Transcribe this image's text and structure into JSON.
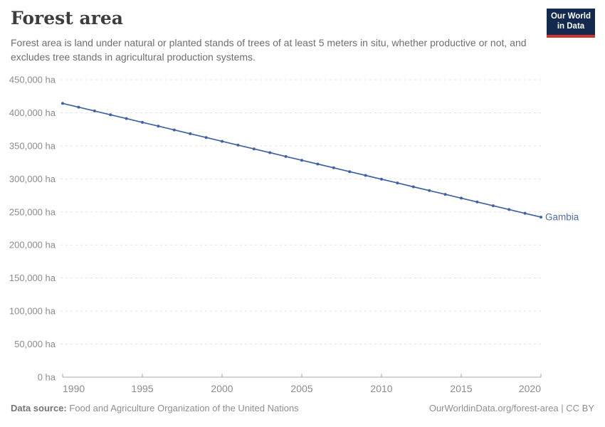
{
  "header": {
    "title": "Forest area",
    "subtitle": "Forest area is land under natural or planted stands of trees of at least 5 meters in situ, whether productive or not, and excludes tree stands in agricultural production systems.",
    "logo": {
      "line1": "Our World",
      "line2": "in Data"
    }
  },
  "footer": {
    "source_label": "Data source:",
    "source_text": "Food and Agriculture Organization of the United Nations",
    "attribution": "OurWorldinData.org/forest-area | CC BY"
  },
  "colors": {
    "line": "#3d63a4",
    "entity_label": "#4e6fa8",
    "gridline": "#e3e3e3",
    "axis": "#a8a8a8",
    "tick_label": "#8c8c8c",
    "logo_bg": "#13294d",
    "logo_accent": "#cf3631"
  },
  "chart_data": {
    "type": "line",
    "title": "Forest area",
    "entity": "Gambia",
    "unit": "ha",
    "x": [
      1990,
      1991,
      1992,
      1993,
      1994,
      1995,
      1996,
      1997,
      1998,
      1999,
      2000,
      2001,
      2002,
      2003,
      2004,
      2005,
      2006,
      2007,
      2008,
      2009,
      2010,
      2011,
      2012,
      2013,
      2014,
      2015,
      2016,
      2017,
      2018,
      2019,
      2020
    ],
    "values": [
      414160,
      408426,
      402692,
      396958,
      391224,
      385490,
      379756,
      374022,
      368288,
      362554,
      356820,
      351086,
      345352,
      339618,
      333884,
      328150,
      322416,
      316682,
      310948,
      305214,
      299480,
      293746,
      288012,
      282278,
      276544,
      270810,
      265076,
      259342,
      253608,
      247874,
      242140
    ],
    "xlim": [
      1990,
      2020
    ],
    "ylim": [
      0,
      450000
    ],
    "xticks": [
      1990,
      1995,
      2000,
      2005,
      2010,
      2015,
      2020
    ],
    "yticks": [
      0,
      50000,
      100000,
      150000,
      200000,
      250000,
      300000,
      350000,
      400000,
      450000
    ],
    "ytick_suffix": " ha",
    "grid": "horizontal-dashed",
    "legend_position": "end-of-line-label",
    "xlabel": "",
    "ylabel": ""
  }
}
